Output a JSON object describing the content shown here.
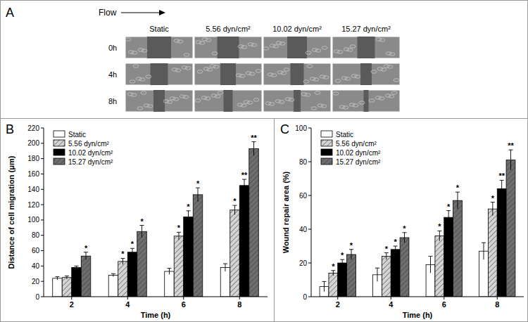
{
  "panel_a": {
    "label": "A",
    "flow": "Flow",
    "conditions": [
      "Static",
      "5.56 dyn/cm²",
      "10.02 dyn/cm²",
      "15.27 dyn/cm²"
    ],
    "times": [
      "0h",
      "4h",
      "8h"
    ]
  },
  "chart_data": [
    {
      "type": "bar",
      "panel": "B",
      "x_label": "Time (h)",
      "y_label": "Distance of cell migration (μm)",
      "categories": [
        "2",
        "4",
        "6",
        "8"
      ],
      "series": [
        {
          "name": "Static",
          "color": "#ffffff",
          "values": [
            24,
            28,
            33,
            38
          ],
          "errors": [
            2,
            2,
            4,
            5
          ],
          "significance": [
            null,
            null,
            null,
            null
          ]
        },
        {
          "name": "5.56 dyn/cm²",
          "color": "#d4d4d4",
          "values": [
            25,
            46,
            79,
            113
          ],
          "errors": [
            2,
            4,
            5,
            6
          ],
          "significance": [
            null,
            "*",
            "*",
            "*"
          ]
        },
        {
          "name": "10.02 dyn/cm²",
          "color": "#000000",
          "values": [
            38,
            58,
            104,
            145
          ],
          "errors": [
            2,
            5,
            8,
            8
          ],
          "significance": [
            null,
            "*",
            "*",
            "**"
          ]
        },
        {
          "name": "15.27 dyn/cm²",
          "color": "#6e6e6e",
          "values": [
            53,
            85,
            133,
            193
          ],
          "errors": [
            5,
            8,
            9,
            9
          ],
          "significance": [
            "*",
            "*",
            "*",
            "**"
          ]
        }
      ],
      "ylim": [
        0,
        220
      ],
      "yticks": [
        0,
        20,
        40,
        60,
        80,
        100,
        120,
        140,
        160,
        180,
        200,
        220
      ],
      "grid": false,
      "legend": "upper left"
    },
    {
      "type": "bar",
      "panel": "C",
      "x_label": "Time (h)",
      "y_label": "Wound repair area (%)",
      "categories": [
        "2",
        "4",
        "6",
        "8"
      ],
      "series": [
        {
          "name": "Static",
          "color": "#ffffff",
          "values": [
            6,
            13,
            19,
            27
          ],
          "errors": [
            3,
            4,
            5,
            5
          ],
          "significance": [
            null,
            null,
            null,
            null
          ]
        },
        {
          "name": "5.56 dyn/cm²",
          "color": "#d4d4d4",
          "values": [
            14,
            24,
            36,
            52
          ],
          "errors": [
            1.5,
            2,
            3,
            4
          ],
          "significance": [
            "*",
            "*",
            "*",
            "*"
          ]
        },
        {
          "name": "10.02 dyn/cm²",
          "color": "#000000",
          "values": [
            20,
            28,
            47,
            64
          ],
          "errors": [
            2,
            2,
            4,
            5
          ],
          "significance": [
            "*",
            "*",
            "*",
            "**"
          ]
        },
        {
          "name": "15.27 dyn/cm²",
          "color": "#6e6e6e",
          "values": [
            25,
            35,
            57,
            81
          ],
          "errors": [
            3,
            3,
            5,
            6
          ],
          "significance": [
            "*",
            "*",
            "*",
            "**"
          ]
        }
      ],
      "ylim": [
        0,
        100
      ],
      "yticks": [
        0,
        20,
        40,
        60,
        80,
        100
      ],
      "grid": false,
      "legend": "upper left"
    }
  ]
}
